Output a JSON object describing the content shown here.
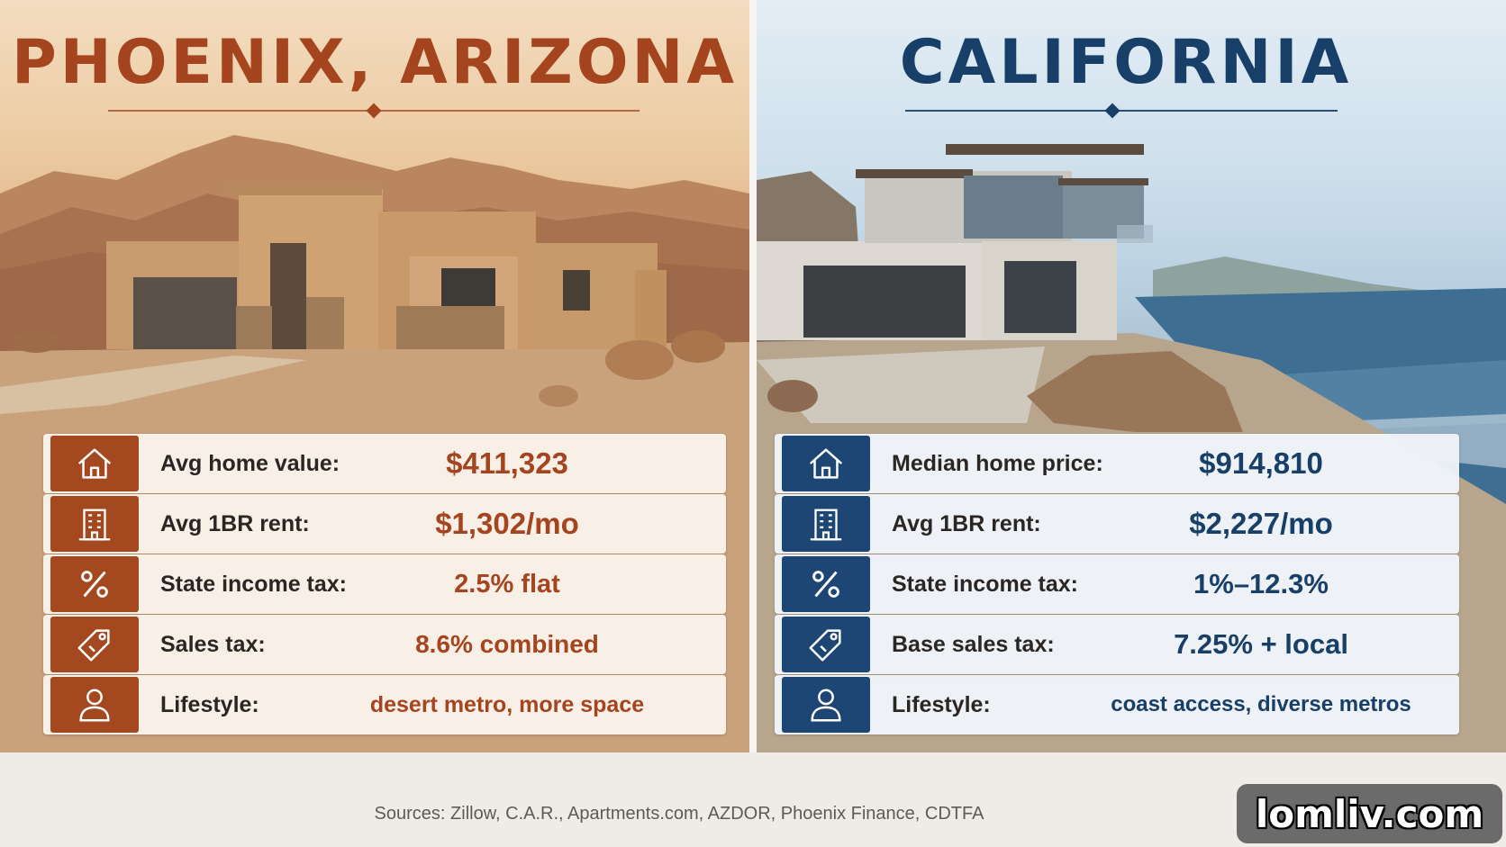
{
  "phoenix": {
    "title": "PHOENIX, ARIZONA",
    "accent": "#a5451f",
    "rows": [
      {
        "icon": "house-icon",
        "label": "Avg home value:",
        "value": "$411,323"
      },
      {
        "icon": "building-icon",
        "label": "Avg 1BR rent:",
        "value": "$1,302/mo"
      },
      {
        "icon": "percent-icon",
        "label": "State income tax:",
        "value": "2.5% flat"
      },
      {
        "icon": "price-tag-icon",
        "label": "Sales tax:",
        "value": "8.6% combined"
      },
      {
        "icon": "person-icon",
        "label": "Lifestyle:",
        "value": "desert metro, more space"
      }
    ]
  },
  "california": {
    "title": "CALIFORNIA",
    "accent": "#173f68",
    "rows": [
      {
        "icon": "house-icon",
        "label": "Median home price:",
        "value": "$914,810"
      },
      {
        "icon": "building-icon",
        "label": "Avg 1BR rent:",
        "value": "$2,227/mo"
      },
      {
        "icon": "percent-icon",
        "label": "State income tax:",
        "value": "1%–12.3%"
      },
      {
        "icon": "price-tag-icon",
        "label": "Base sales tax:",
        "value": "7.25% + local"
      },
      {
        "icon": "person-icon",
        "label": "Lifestyle:",
        "value": "coast access, diverse metros"
      }
    ]
  },
  "footer": {
    "sources": "Sources: Zillow, C.A.R., Apartments.com, AZDOR, Phoenix Finance, CDTFA",
    "brand": "lomliv.com"
  }
}
